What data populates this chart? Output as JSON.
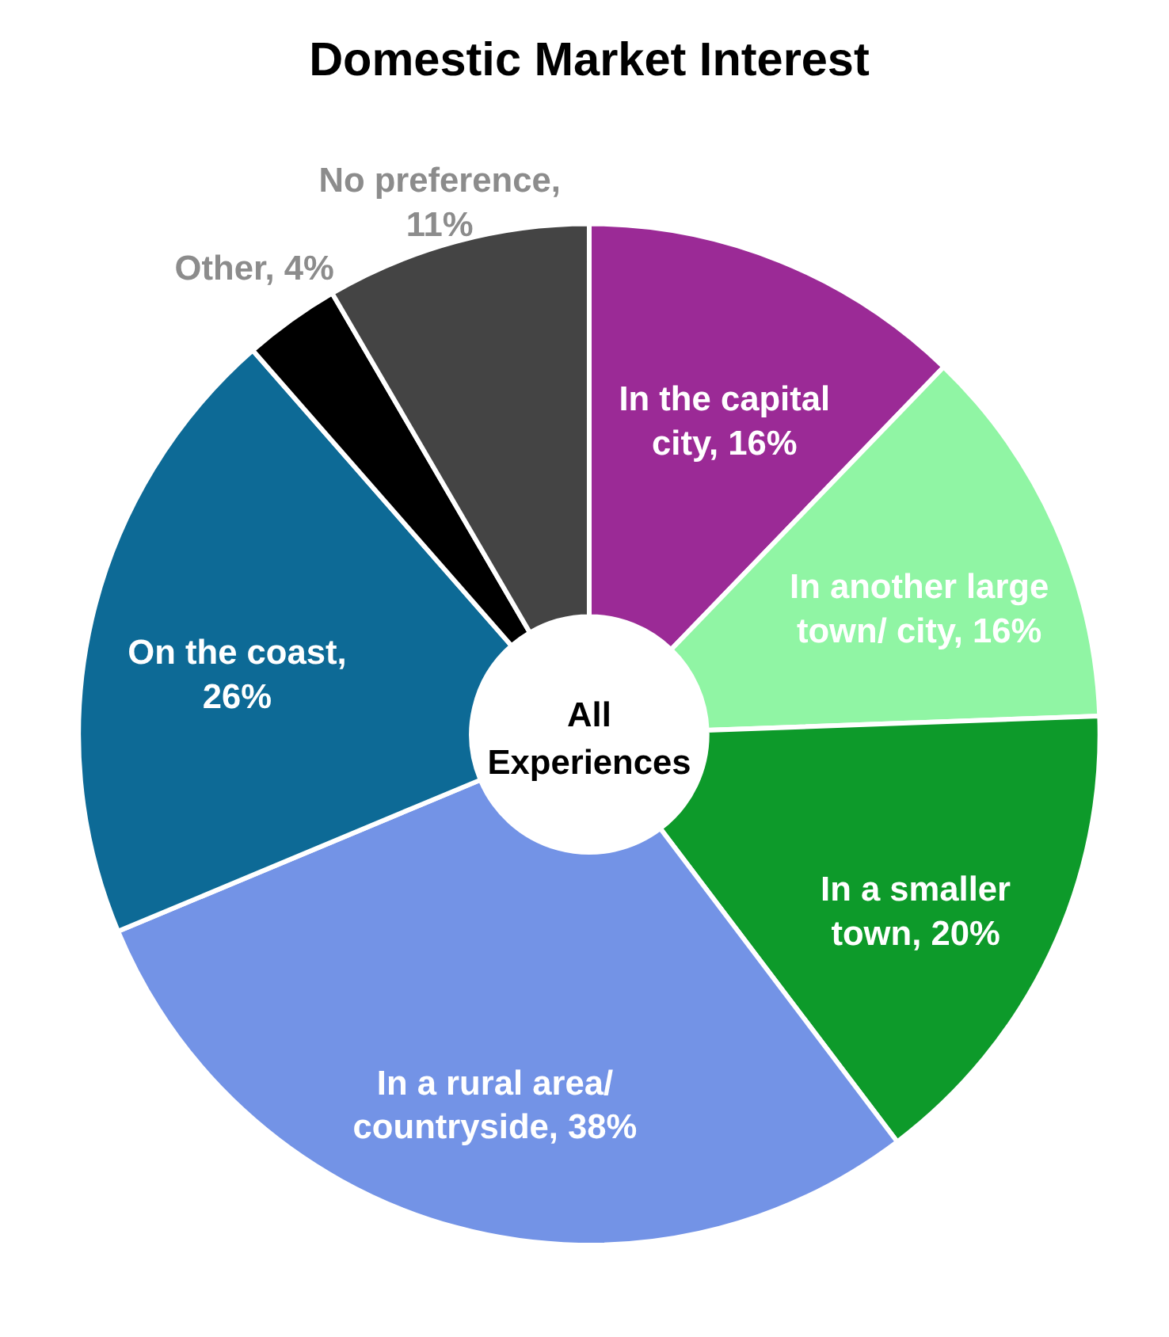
{
  "chart_data": {
    "type": "donut",
    "title": "Domestic Market Interest",
    "categories": [
      "In the capital city",
      "In another large town/ city",
      "In a smaller town",
      "In a rural area/ countryside",
      "On the coast",
      "Other",
      "No preference"
    ],
    "values": [
      16,
      16,
      20,
      38,
      26,
      4,
      11
    ],
    "value_labels": [
      ", 16%",
      ", 16%",
      ", 20%",
      ", 38%",
      ", 26%",
      ", 4%",
      ", 11%"
    ],
    "colors": [
      "#9b2a96",
      "#90f5a4",
      "#0d9a2a",
      "#7393e6",
      "#0d6a96",
      "#000000",
      "#444444"
    ],
    "annotations": [
      "All Experiences"
    ],
    "legend": false
  }
}
